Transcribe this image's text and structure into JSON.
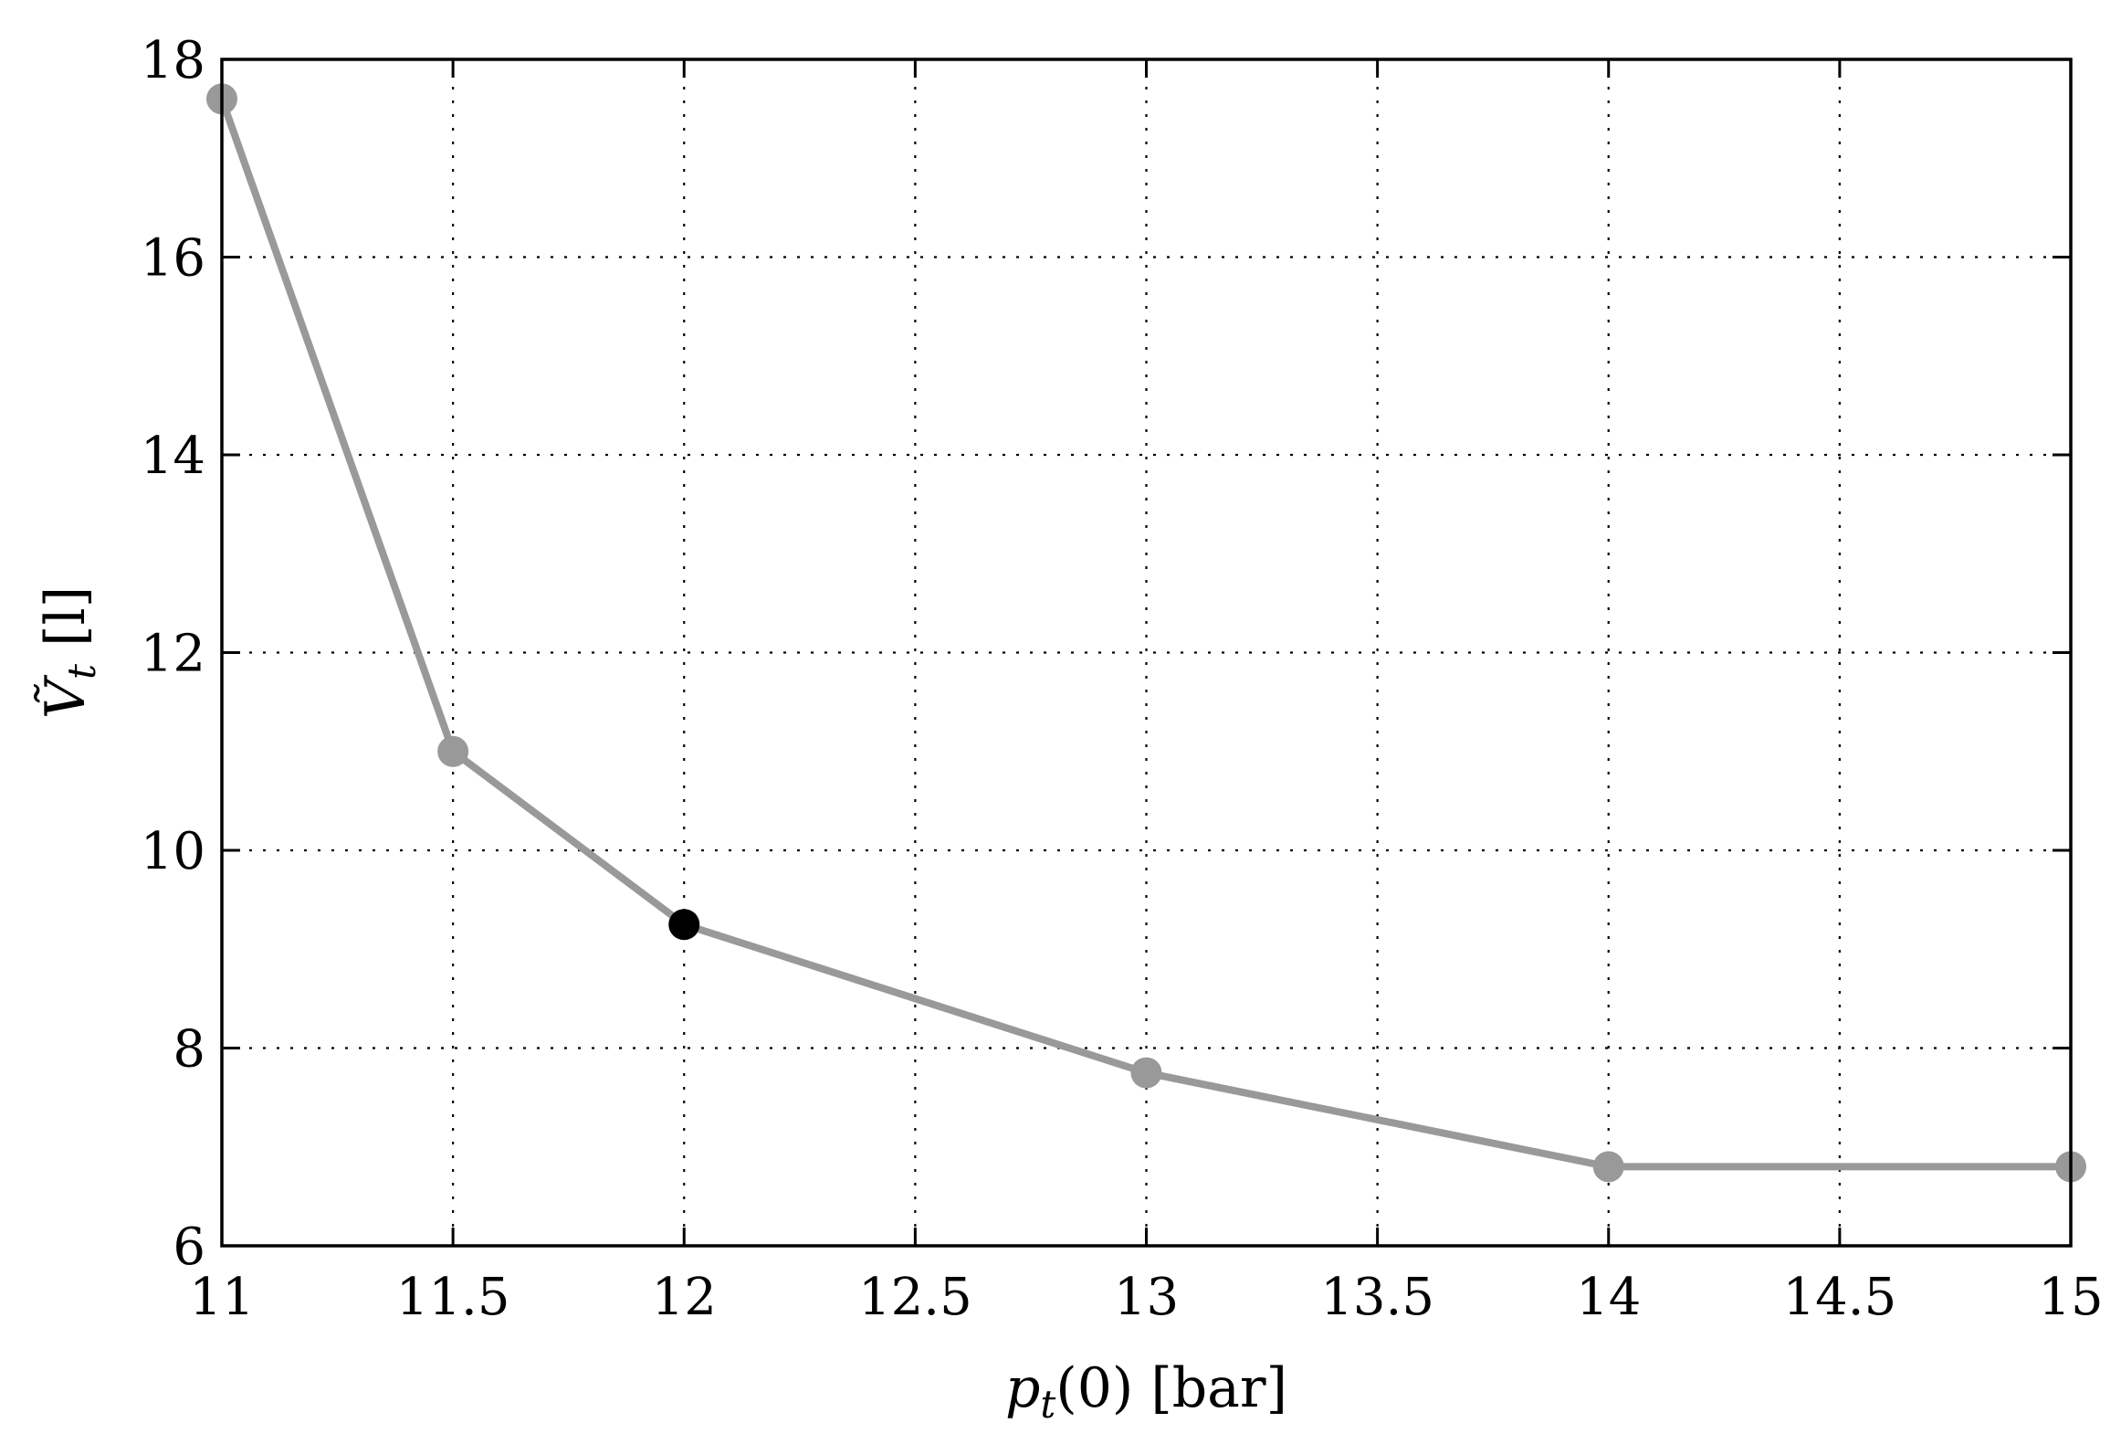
{
  "chart_data": {
    "type": "line",
    "xlabel_main": "p",
    "xlabel_sub": "t",
    "xlabel_rest": "(0) [bar]",
    "ylabel_main": "Ṽ",
    "ylabel_sub": "t",
    "ylabel_rest": " [l]",
    "xlim": [
      11,
      15
    ],
    "ylim": [
      6,
      18
    ],
    "xticks": [
      11,
      11.5,
      12,
      12.5,
      13,
      13.5,
      14,
      14.5,
      15
    ],
    "xtick_labels": [
      "11",
      "11.5",
      "12",
      "12.5",
      "13",
      "13.5",
      "14",
      "14.5",
      "15"
    ],
    "yticks": [
      6,
      8,
      10,
      12,
      14,
      16,
      18
    ],
    "ytick_labels": [
      "6",
      "8",
      "10",
      "12",
      "14",
      "16",
      "18"
    ],
    "grid": true,
    "series": [
      {
        "x": [
          11,
          11.5,
          12,
          13,
          14,
          15
        ],
        "y": [
          17.6,
          11.0,
          9.25,
          7.75,
          6.8,
          6.8
        ],
        "line_color": "#999999",
        "marker_color": "#999999",
        "highlight_index": 2,
        "highlight_color": "#000000"
      }
    ]
  }
}
